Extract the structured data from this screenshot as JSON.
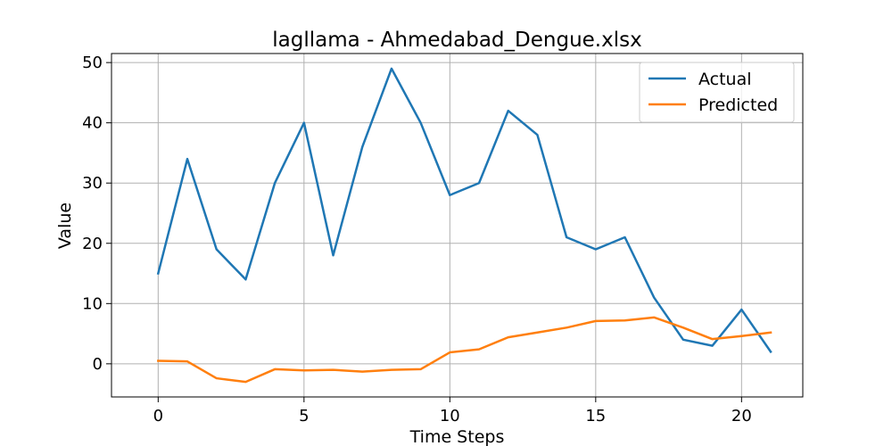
{
  "chart_data": {
    "type": "line",
    "title": "lagllama - Ahmedabad_Dengue.xlsx",
    "xlabel": "Time Steps",
    "ylabel": "Value",
    "xlim": [
      -1.6,
      22.1
    ],
    "ylim": [
      -5.5,
      51.5
    ],
    "xticks": [
      0,
      5,
      10,
      15,
      20
    ],
    "yticks": [
      0,
      10,
      20,
      30,
      40,
      50
    ],
    "grid": true,
    "legend_position": "top-right",
    "x": [
      0,
      1,
      2,
      3,
      4,
      5,
      6,
      7,
      8,
      9,
      10,
      11,
      12,
      13,
      14,
      15,
      16,
      17,
      18,
      19,
      20,
      21
    ],
    "series": [
      {
        "name": "Actual",
        "color": "#1f77b4",
        "values": [
          15,
          34,
          19,
          14,
          30,
          40,
          18,
          36,
          49,
          40,
          28,
          30,
          42,
          38,
          21,
          19,
          21,
          11,
          4,
          3,
          9,
          2
        ]
      },
      {
        "name": "Predicted",
        "color": "#ff7f0e",
        "values": [
          0.5,
          0.4,
          -2.4,
          -3.0,
          -0.9,
          -1.1,
          -1.0,
          -1.3,
          -1.0,
          -0.9,
          1.9,
          2.4,
          4.4,
          5.2,
          6.0,
          7.1,
          7.2,
          7.7,
          6.0,
          4.1,
          4.6,
          5.2
        ]
      }
    ]
  }
}
